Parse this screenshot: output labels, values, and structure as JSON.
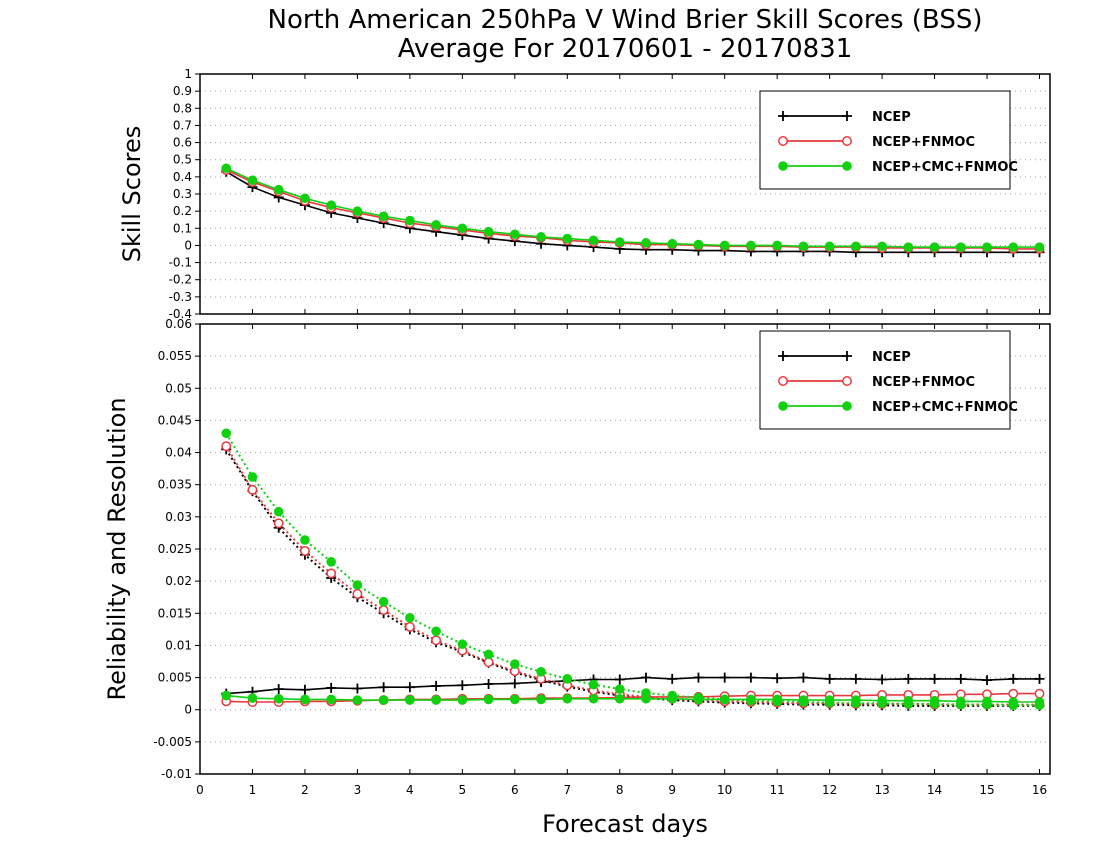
{
  "title": {
    "line1": "North American 250hPa V Wind Brier Skill Scores (BSS)",
    "line2": "Average For 20170601 - 20170831"
  },
  "xlabel": "Forecast days",
  "colors": {
    "NCEP": "#000000",
    "NCEP+FNMOC": "#e8393f",
    "NCEP+CMC+FNMOC": "#10d010",
    "grid": "#a0a0a0"
  },
  "chart_data": [
    {
      "type": "line",
      "ylabel": "Skill Scores",
      "xlim": [
        0,
        16.2
      ],
      "ylim": [
        -0.4,
        1
      ],
      "x_ticks": [
        0,
        1,
        2,
        3,
        4,
        5,
        6,
        7,
        8,
        9,
        10,
        11,
        12,
        13,
        14,
        15,
        16
      ],
      "y_ticks": [
        -0.4,
        -0.3,
        -0.2,
        -0.1,
        0,
        0.1,
        0.2,
        0.3,
        0.4,
        0.5,
        0.6,
        0.7,
        0.8,
        0.9,
        1
      ],
      "y_tick_labels": [
        "-0.4",
        "-0.3",
        "-0.2",
        "-0.1",
        "0",
        "0.1",
        "0.2",
        "0.3",
        "0.4",
        "0.5",
        "0.6",
        "0.7",
        "0.8",
        "0.9",
        "1"
      ],
      "grid": "horizontal dotted",
      "legend_position": "top-right",
      "x": [
        0.5,
        1,
        1.5,
        2,
        2.5,
        3,
        3.5,
        4,
        4.5,
        5,
        5.5,
        6,
        6.5,
        7,
        7.5,
        8,
        8.5,
        9,
        9.5,
        10,
        10.5,
        11,
        11.5,
        12,
        12.5,
        13,
        13.5,
        14,
        14.5,
        15,
        15.5,
        16
      ],
      "series": [
        {
          "name": "NCEP",
          "marker": "plus",
          "line": "solid",
          "values": [
            0.43,
            0.34,
            0.28,
            0.235,
            0.19,
            0.16,
            0.13,
            0.1,
            0.08,
            0.06,
            0.04,
            0.025,
            0.01,
            0,
            -0.01,
            -0.02,
            -0.025,
            -0.025,
            -0.03,
            -0.03,
            -0.035,
            -0.035,
            -0.035,
            -0.035,
            -0.04,
            -0.04,
            -0.04,
            -0.04,
            -0.04,
            -0.04,
            -0.04,
            -0.04
          ]
        },
        {
          "name": "NCEP+FNMOC",
          "marker": "open-circle",
          "line": "solid",
          "values": [
            0.44,
            0.37,
            0.315,
            0.26,
            0.22,
            0.19,
            0.16,
            0.13,
            0.11,
            0.09,
            0.07,
            0.055,
            0.045,
            0.03,
            0.02,
            0.015,
            0.005,
            0.005,
            0,
            -0.005,
            -0.005,
            -0.005,
            -0.01,
            -0.01,
            -0.01,
            -0.015,
            -0.015,
            -0.015,
            -0.015,
            -0.015,
            -0.02,
            -0.02
          ]
        },
        {
          "name": "NCEP+CMC+FNMOC",
          "marker": "filled-circle",
          "line": "solid",
          "values": [
            0.45,
            0.38,
            0.325,
            0.275,
            0.235,
            0.2,
            0.17,
            0.145,
            0.12,
            0.1,
            0.08,
            0.065,
            0.05,
            0.04,
            0.03,
            0.02,
            0.015,
            0.01,
            0.005,
            0,
            0,
            0,
            -0.005,
            -0.005,
            -0.005,
            -0.005,
            -0.01,
            -0.01,
            -0.01,
            -0.01,
            -0.01,
            -0.01
          ]
        }
      ]
    },
    {
      "type": "line",
      "ylabel": "Reliability and Resolution",
      "xlim": [
        0,
        16.2
      ],
      "ylim": [
        -0.01,
        0.06
      ],
      "x_ticks": [
        0,
        1,
        2,
        3,
        4,
        5,
        6,
        7,
        8,
        9,
        10,
        11,
        12,
        13,
        14,
        15,
        16
      ],
      "x_tick_labels": [
        "0",
        "1",
        "2",
        "3",
        "4",
        "5",
        "6",
        "7",
        "8",
        "9",
        "10",
        "11",
        "12",
        "13",
        "14",
        "15",
        "16"
      ],
      "y_ticks": [
        -0.01,
        -0.005,
        0,
        0.005,
        0.01,
        0.015,
        0.02,
        0.025,
        0.03,
        0.035,
        0.04,
        0.045,
        0.05,
        0.055,
        0.06
      ],
      "y_tick_labels": [
        "-0.01",
        "-0.005",
        "0",
        "0.005",
        "0.01",
        "0.015",
        "0.02",
        "0.025",
        "0.03",
        "0.035",
        "0.04",
        "0.045",
        "0.05",
        "0.055",
        "0.06"
      ],
      "grid": "horizontal dotted",
      "legend_position": "top-right",
      "x": [
        0.5,
        1,
        1.5,
        2,
        2.5,
        3,
        3.5,
        4,
        4.5,
        5,
        5.5,
        6,
        6.5,
        7,
        7.5,
        8,
        8.5,
        9,
        9.5,
        10,
        10.5,
        11,
        11.5,
        12,
        12.5,
        13,
        13.5,
        14,
        14.5,
        15,
        15.5,
        16
      ],
      "series": [
        {
          "name": "NCEP",
          "metric": "reliability",
          "marker": "plus",
          "line": "solid",
          "values": [
            0.0025,
            0.0028,
            0.0032,
            0.0031,
            0.0034,
            0.0033,
            0.0035,
            0.0035,
            0.0037,
            0.0038,
            0.004,
            0.0041,
            0.0043,
            0.0045,
            0.0047,
            0.0047,
            0.005,
            0.0048,
            0.005,
            0.005,
            0.005,
            0.0049,
            0.005,
            0.0048,
            0.0048,
            0.0047,
            0.0048,
            0.0048,
            0.0048,
            0.0046,
            0.0048,
            0.0048
          ]
        },
        {
          "name": "NCEP",
          "metric": "resolution",
          "marker": "plus",
          "line": "dotted",
          "values": [
            0.0405,
            0.034,
            0.0283,
            0.0241,
            0.0205,
            0.0175,
            0.015,
            0.0125,
            0.0105,
            0.009,
            0.0073,
            0.0058,
            0.0046,
            0.0036,
            0.0028,
            0.0022,
            0.0018,
            0.0015,
            0.0013,
            0.0011,
            0.001,
            0.0009,
            0.0008,
            0.0008,
            0.0007,
            0.0007,
            0.0006,
            0.0006,
            0.0006,
            0.0006,
            0.0006,
            0.0006
          ]
        },
        {
          "name": "NCEP+FNMOC",
          "metric": "reliability",
          "marker": "open-circle",
          "line": "solid",
          "values": [
            0.0013,
            0.0012,
            0.0012,
            0.0013,
            0.0013,
            0.0014,
            0.0015,
            0.0016,
            0.0016,
            0.0017,
            0.0017,
            0.0017,
            0.0018,
            0.0018,
            0.0018,
            0.0019,
            0.002,
            0.002,
            0.002,
            0.0021,
            0.0022,
            0.0022,
            0.0022,
            0.0022,
            0.0022,
            0.0023,
            0.0023,
            0.0023,
            0.0024,
            0.0024,
            0.0025,
            0.0025
          ]
        },
        {
          "name": "NCEP+FNMOC",
          "metric": "resolution",
          "marker": "open-circle",
          "line": "dotted",
          "values": [
            0.041,
            0.0342,
            0.029,
            0.0247,
            0.0212,
            0.018,
            0.0155,
            0.0129,
            0.0108,
            0.0092,
            0.0074,
            0.006,
            0.0048,
            0.0038,
            0.003,
            0.0024,
            0.002,
            0.0017,
            0.0015,
            0.0013,
            0.0012,
            0.0011,
            0.001,
            0.001,
            0.0009,
            0.0009,
            0.0009,
            0.0008,
            0.0008,
            0.0008,
            0.0008,
            0.0008
          ]
        },
        {
          "name": "NCEP+CMC+FNMOC",
          "metric": "reliability",
          "marker": "filled-circle",
          "line": "solid",
          "values": [
            0.0022,
            0.0018,
            0.0017,
            0.0016,
            0.0016,
            0.0015,
            0.0015,
            0.0015,
            0.0015,
            0.0015,
            0.0016,
            0.0016,
            0.0016,
            0.0017,
            0.0017,
            0.0017,
            0.0017,
            0.0017,
            0.0016,
            0.0016,
            0.0016,
            0.0016,
            0.0015,
            0.0015,
            0.0015,
            0.0014,
            0.0014,
            0.0014,
            0.0013,
            0.0013,
            0.0012,
            0.0012
          ]
        },
        {
          "name": "NCEP+CMC+FNMOC",
          "metric": "resolution",
          "marker": "filled-circle",
          "line": "dotted",
          "values": [
            0.043,
            0.0362,
            0.0308,
            0.0264,
            0.023,
            0.0194,
            0.0168,
            0.0143,
            0.0122,
            0.0102,
            0.0086,
            0.0071,
            0.0059,
            0.0048,
            0.0039,
            0.0032,
            0.0026,
            0.0022,
            0.0019,
            0.0016,
            0.0014,
            0.0013,
            0.0012,
            0.0011,
            0.001,
            0.001,
            0.0009,
            0.0009,
            0.0008,
            0.0008,
            0.0007,
            0.0007
          ]
        }
      ]
    }
  ]
}
